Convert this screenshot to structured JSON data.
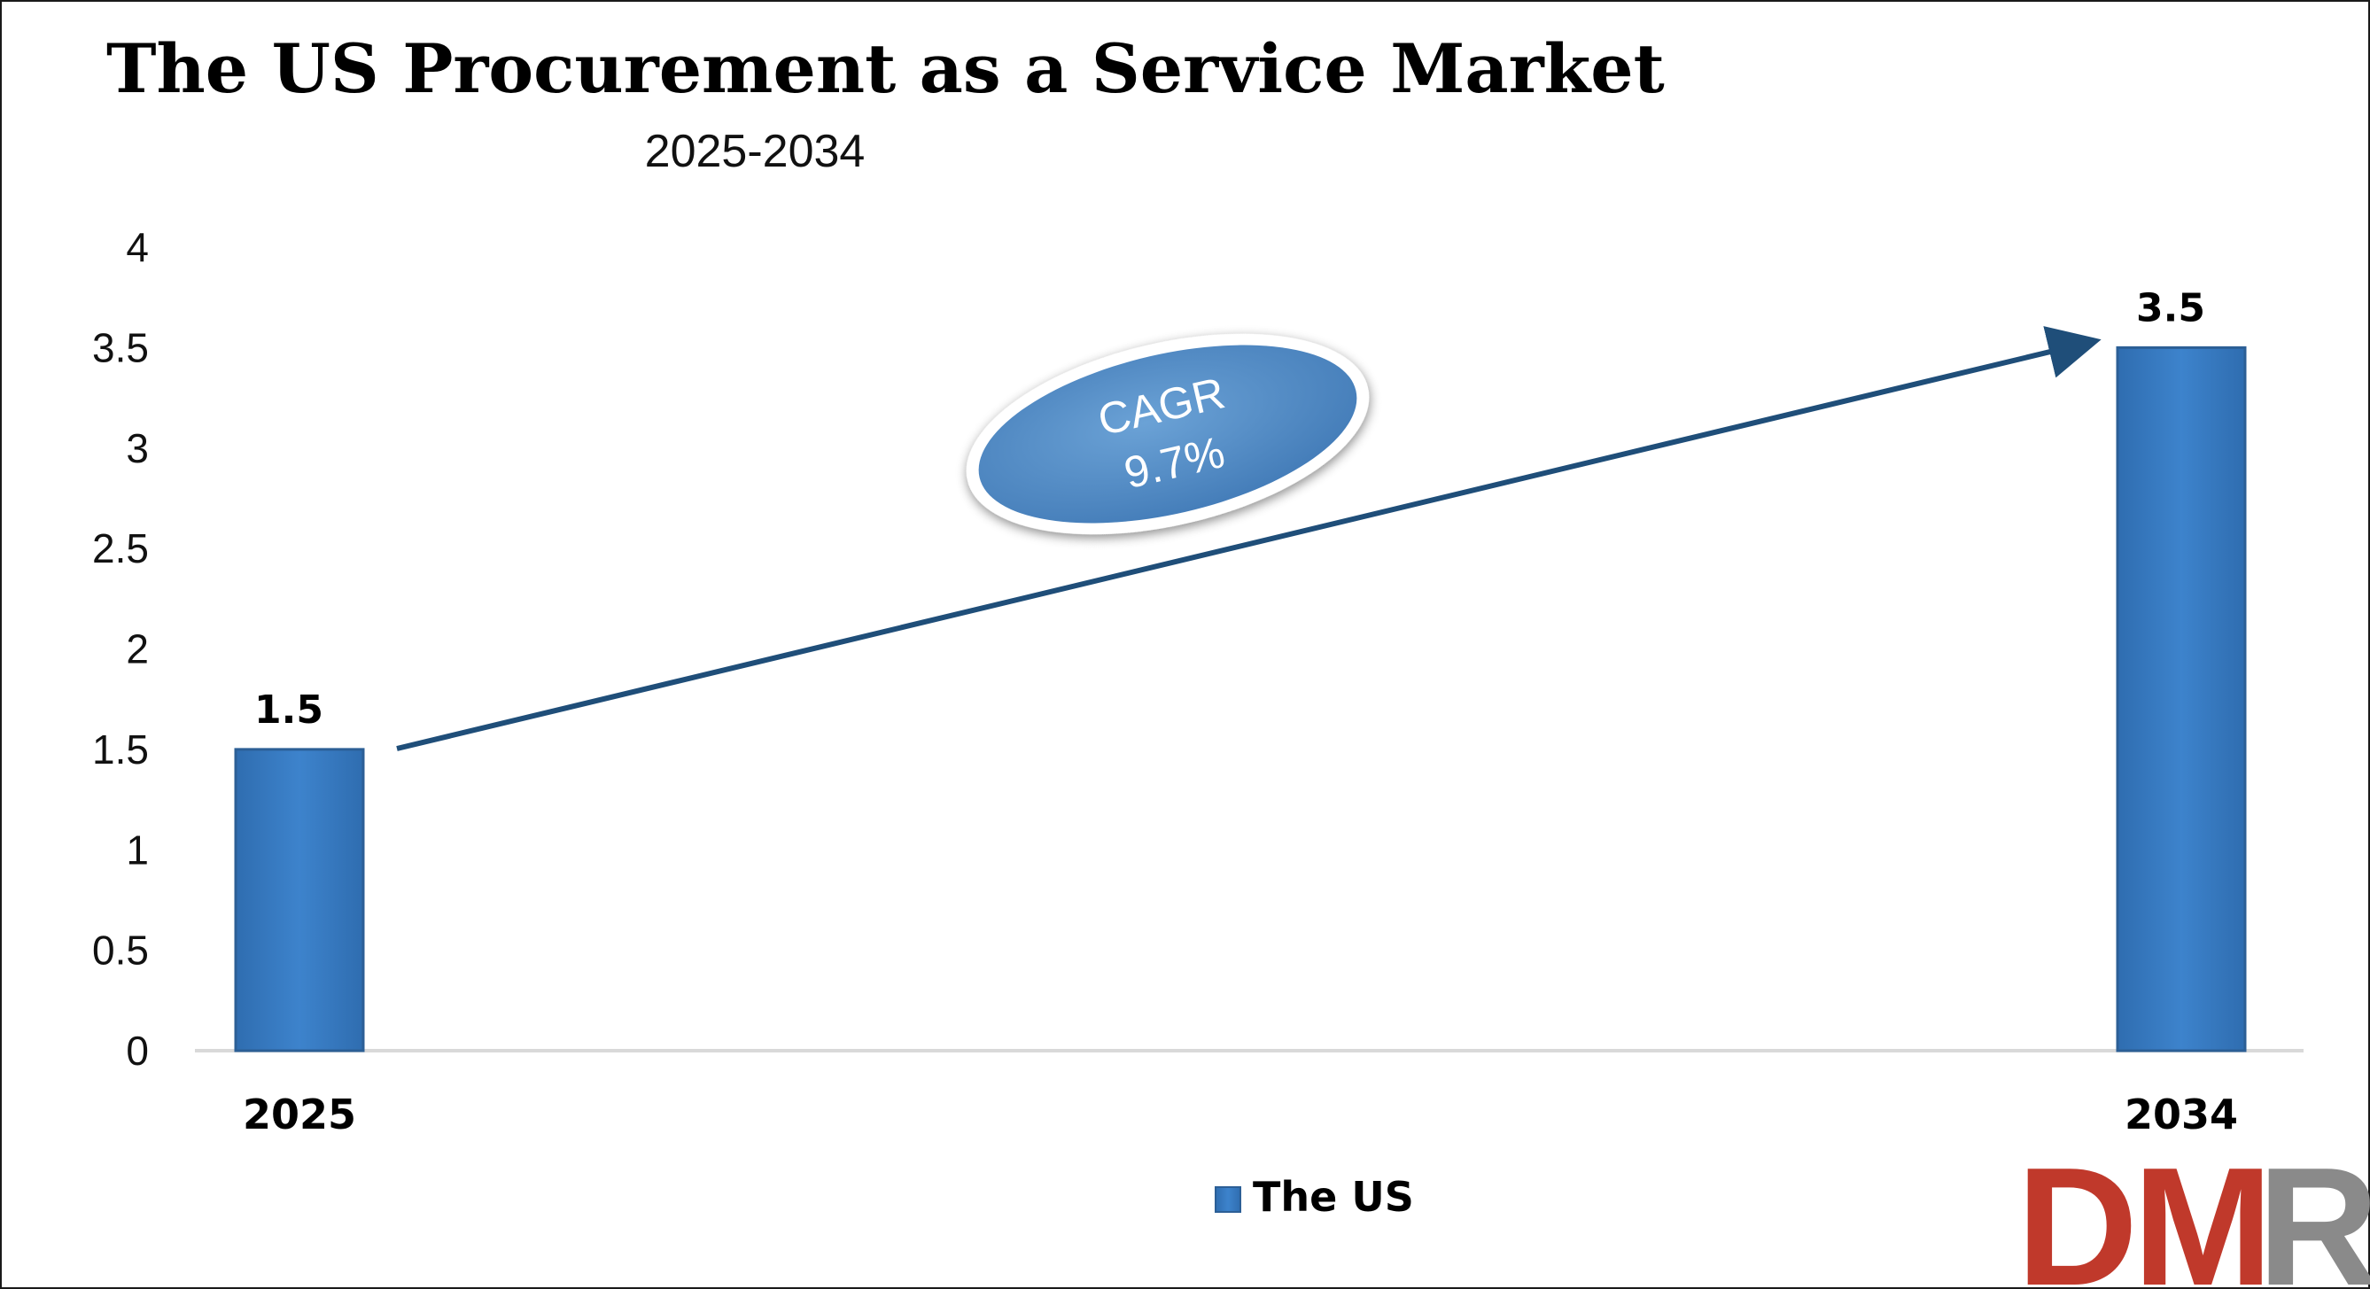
{
  "chart_data": {
    "type": "bar",
    "title": "The US Procurement as a Service Market",
    "subtitle": "2025-2034",
    "categories": [
      "2025",
      "2034"
    ],
    "series": [
      {
        "name": "The US",
        "values": [
          1.5,
          3.5
        ]
      }
    ],
    "data_labels": [
      "1.5",
      "3.5"
    ],
    "yticks": [
      "0",
      "0.5",
      "1",
      "1.5",
      "2",
      "2.5",
      "3",
      "3.5",
      "4"
    ],
    "ylim": [
      0,
      4
    ],
    "grid": false,
    "legend": "bottom-center",
    "annotation": {
      "line1": "CAGR",
      "line2": "9.7%"
    },
    "colors": {
      "bar": "#3A7CC1",
      "bar_edge": "#2C5F96",
      "arrow": "#1F4E79",
      "ellipse": "#5A93C8"
    }
  },
  "logo": {
    "text": "DMR",
    "color_dm": "#C0392B",
    "color_r": "#7F7F7F"
  }
}
